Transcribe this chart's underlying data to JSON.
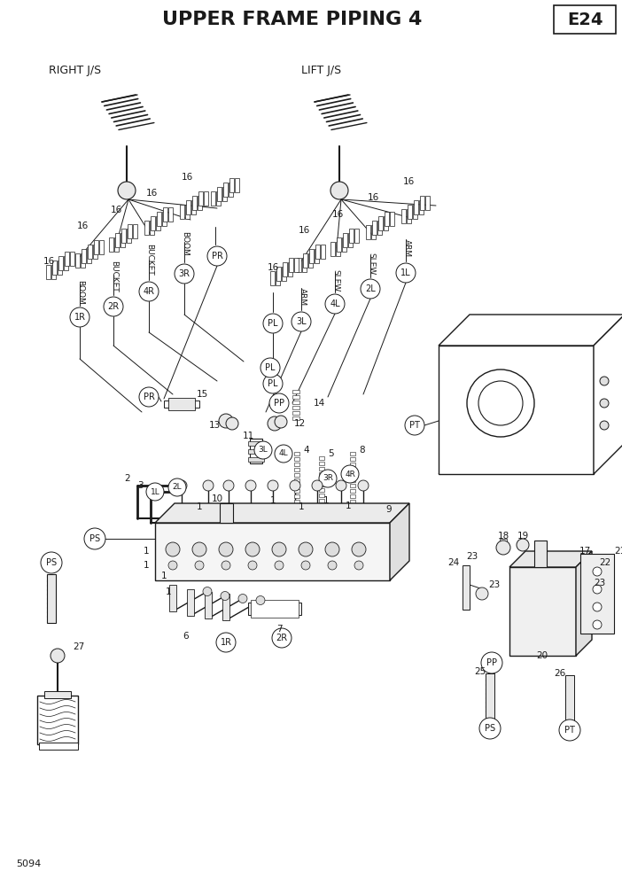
{
  "title": "UPPER FRAME PIPING 4",
  "page_code": "E24",
  "page_number": "5094",
  "bg_color": "#ffffff",
  "line_color": "#1a1a1a",
  "figwidth": 7.02,
  "figheight": 9.92,
  "title_fontsize": 16,
  "code_fontsize": 14,
  "label_fontsize": 8.5,
  "small_fontsize": 7.5
}
